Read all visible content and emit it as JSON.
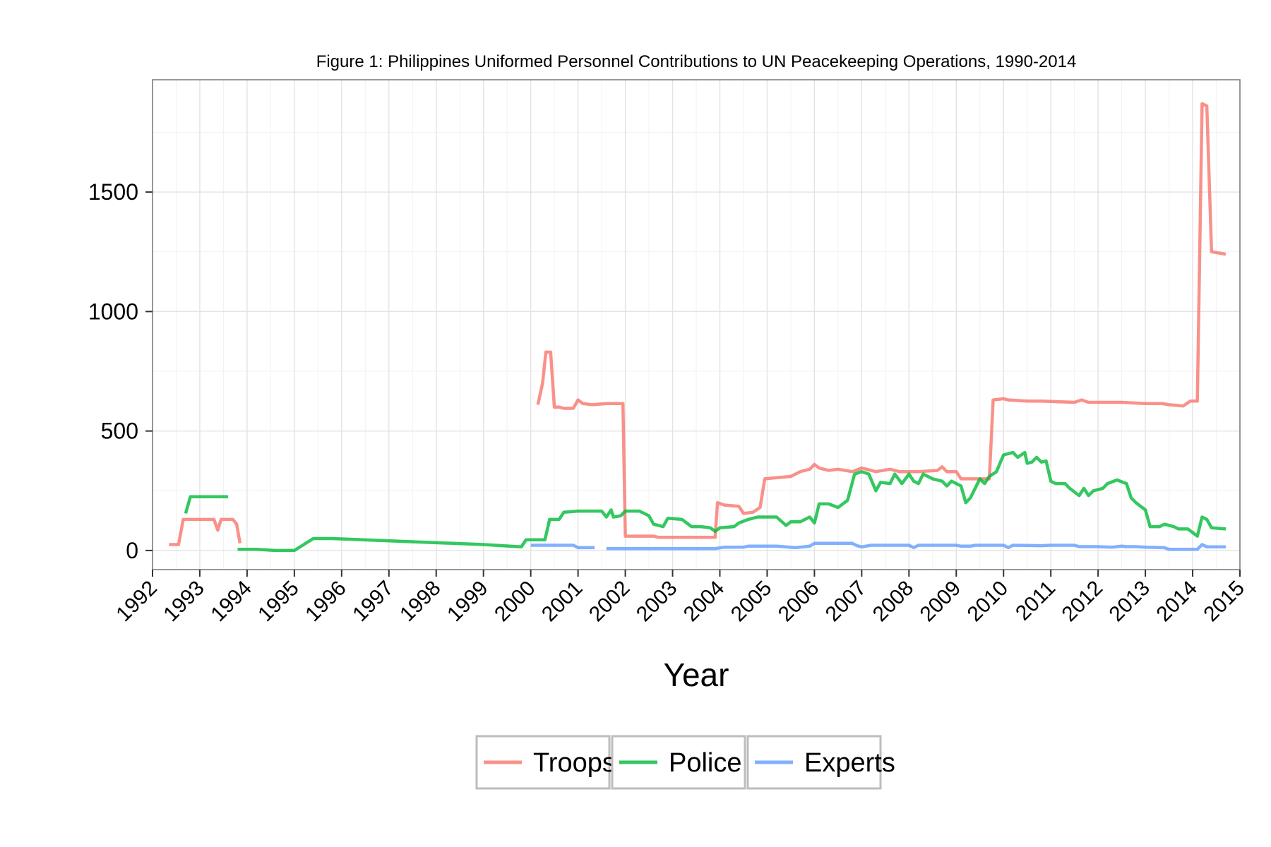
{
  "chart_data": {
    "type": "line",
    "title": "Figure 1: Philippines Uniformed Personnel Contributions to UN Peacekeeping Operations, 1990-2014",
    "xlabel": "Year",
    "ylabel": "",
    "xlim": [
      1992.0,
      2015.0
    ],
    "ylim": [
      -80,
      1970
    ],
    "x_ticks": [
      1992,
      1993,
      1994,
      1995,
      1996,
      1997,
      1998,
      1999,
      2000,
      2001,
      2002,
      2003,
      2004,
      2005,
      2006,
      2007,
      2008,
      2009,
      2010,
      2011,
      2012,
      2013,
      2014,
      2015
    ],
    "y_ticks": [
      0,
      500,
      1000,
      1500
    ],
    "grid": true,
    "legend": {
      "position": "bottom",
      "entries": [
        "Troops",
        "Police",
        "Experts"
      ]
    },
    "series": [
      {
        "name": "Troops",
        "color": "#F8766D",
        "segments": [
          [
            [
              1992.35,
              25
            ],
            [
              1992.55,
              25
            ],
            [
              1992.65,
              130
            ],
            [
              1993.3,
              130
            ],
            [
              1993.38,
              85
            ],
            [
              1993.45,
              130
            ],
            [
              1993.7,
              130
            ],
            [
              1993.78,
              110
            ],
            [
              1993.85,
              30
            ]
          ],
          [
            [
              2000.15,
              610
            ],
            [
              2000.25,
              700
            ],
            [
              2000.32,
              830
            ],
            [
              2000.42,
              830
            ],
            [
              2000.5,
              600
            ],
            [
              2000.6,
              600
            ],
            [
              2000.7,
              595
            ],
            [
              2000.9,
              595
            ],
            [
              2001.0,
              630
            ],
            [
              2001.1,
              615
            ],
            [
              2001.3,
              610
            ],
            [
              2001.6,
              615
            ],
            [
              2001.95,
              615
            ],
            [
              2002.0,
              60
            ],
            [
              2002.4,
              60
            ],
            [
              2002.6,
              60
            ],
            [
              2002.7,
              55
            ],
            [
              2003.0,
              55
            ],
            [
              2003.9,
              55
            ],
            [
              2003.95,
              200
            ],
            [
              2004.1,
              190
            ],
            [
              2004.4,
              185
            ],
            [
              2004.5,
              155
            ],
            [
              2004.7,
              160
            ],
            [
              2004.85,
              180
            ],
            [
              2004.95,
              300
            ],
            [
              2005.2,
              305
            ],
            [
              2005.5,
              310
            ],
            [
              2005.7,
              330
            ],
            [
              2005.9,
              340
            ],
            [
              2006.0,
              360
            ],
            [
              2006.1,
              345
            ],
            [
              2006.3,
              335
            ],
            [
              2006.5,
              340
            ],
            [
              2006.8,
              330
            ],
            [
              2007.0,
              345
            ],
            [
              2007.3,
              330
            ],
            [
              2007.6,
              340
            ],
            [
              2007.8,
              330
            ],
            [
              2008.2,
              330
            ],
            [
              2008.6,
              335
            ],
            [
              2008.7,
              350
            ],
            [
              2008.8,
              330
            ],
            [
              2009.0,
              330
            ],
            [
              2009.1,
              300
            ],
            [
              2009.7,
              300
            ],
            [
              2009.78,
              630
            ],
            [
              2010.0,
              635
            ],
            [
              2010.1,
              630
            ],
            [
              2010.5,
              625
            ],
            [
              2010.8,
              625
            ],
            [
              2011.5,
              620
            ],
            [
              2011.65,
              630
            ],
            [
              2011.8,
              620
            ],
            [
              2012.5,
              620
            ],
            [
              2013.0,
              615
            ],
            [
              2013.35,
              615
            ],
            [
              2013.5,
              610
            ],
            [
              2013.8,
              605
            ],
            [
              2013.95,
              625
            ],
            [
              2014.1,
              625
            ],
            [
              2014.2,
              1870
            ],
            [
              2014.3,
              1860
            ],
            [
              2014.4,
              1250
            ],
            [
              2014.7,
              1240
            ]
          ]
        ]
      },
      {
        "name": "Police",
        "color": "#00BA38",
        "segments": [
          [
            [
              1992.7,
              155
            ],
            [
              1992.8,
              225
            ],
            [
              1993.0,
              225
            ],
            [
              1993.2,
              225
            ],
            [
              1993.5,
              225
            ],
            [
              1993.6,
              225
            ]
          ],
          [
            [
              1993.8,
              5
            ],
            [
              1994.2,
              5
            ],
            [
              1994.6,
              0
            ],
            [
              1995.0,
              0
            ],
            [
              1995.4,
              50
            ],
            [
              1995.8,
              50
            ],
            [
              1999.0,
              25
            ],
            [
              1999.8,
              15
            ],
            [
              1999.9,
              45
            ],
            [
              2000.3,
              45
            ],
            [
              2000.4,
              130
            ],
            [
              2000.6,
              130
            ],
            [
              2000.7,
              160
            ],
            [
              2001.0,
              165
            ],
            [
              2001.5,
              165
            ],
            [
              2001.6,
              140
            ],
            [
              2001.7,
              170
            ],
            [
              2001.75,
              140
            ],
            [
              2001.9,
              145
            ],
            [
              2002.0,
              165
            ],
            [
              2002.3,
              165
            ],
            [
              2002.5,
              145
            ],
            [
              2002.6,
              110
            ],
            [
              2002.8,
              100
            ],
            [
              2002.9,
              135
            ],
            [
              2003.2,
              130
            ],
            [
              2003.4,
              100
            ],
            [
              2003.6,
              100
            ],
            [
              2003.8,
              95
            ],
            [
              2003.9,
              80
            ],
            [
              2004.0,
              95
            ],
            [
              2004.3,
              100
            ],
            [
              2004.4,
              115
            ],
            [
              2004.6,
              130
            ],
            [
              2004.8,
              140
            ],
            [
              2005.2,
              140
            ],
            [
              2005.4,
              105
            ],
            [
              2005.5,
              120
            ],
            [
              2005.7,
              120
            ],
            [
              2005.9,
              140
            ],
            [
              2006.0,
              115
            ],
            [
              2006.1,
              195
            ],
            [
              2006.3,
              195
            ],
            [
              2006.5,
              180
            ],
            [
              2006.7,
              210
            ],
            [
              2006.85,
              320
            ],
            [
              2007.0,
              330
            ],
            [
              2007.15,
              320
            ],
            [
              2007.3,
              250
            ],
            [
              2007.4,
              285
            ],
            [
              2007.6,
              280
            ],
            [
              2007.7,
              320
            ],
            [
              2007.85,
              280
            ],
            [
              2008.0,
              320
            ],
            [
              2008.1,
              290
            ],
            [
              2008.2,
              280
            ],
            [
              2008.3,
              320
            ],
            [
              2008.5,
              300
            ],
            [
              2008.7,
              290
            ],
            [
              2008.8,
              270
            ],
            [
              2008.9,
              290
            ],
            [
              2009.1,
              270
            ],
            [
              2009.2,
              200
            ],
            [
              2009.3,
              220
            ],
            [
              2009.4,
              260
            ],
            [
              2009.5,
              300
            ],
            [
              2009.6,
              280
            ],
            [
              2009.7,
              310
            ],
            [
              2009.85,
              330
            ],
            [
              2010.0,
              400
            ],
            [
              2010.2,
              410
            ],
            [
              2010.3,
              390
            ],
            [
              2010.45,
              410
            ],
            [
              2010.5,
              365
            ],
            [
              2010.6,
              370
            ],
            [
              2010.7,
              390
            ],
            [
              2010.8,
              370
            ],
            [
              2010.9,
              375
            ],
            [
              2011.0,
              290
            ],
            [
              2011.1,
              280
            ],
            [
              2011.3,
              280
            ],
            [
              2011.4,
              260
            ],
            [
              2011.6,
              230
            ],
            [
              2011.7,
              260
            ],
            [
              2011.8,
              230
            ],
            [
              2011.9,
              250
            ],
            [
              2012.1,
              260
            ],
            [
              2012.2,
              280
            ],
            [
              2012.4,
              295
            ],
            [
              2012.6,
              280
            ],
            [
              2012.7,
              220
            ],
            [
              2012.8,
              200
            ],
            [
              2013.0,
              170
            ],
            [
              2013.1,
              100
            ],
            [
              2013.3,
              100
            ],
            [
              2013.4,
              110
            ],
            [
              2013.6,
              100
            ],
            [
              2013.7,
              90
            ],
            [
              2013.9,
              90
            ],
            [
              2014.0,
              75
            ],
            [
              2014.1,
              60
            ],
            [
              2014.2,
              140
            ],
            [
              2014.3,
              130
            ],
            [
              2014.4,
              95
            ],
            [
              2014.7,
              90
            ]
          ]
        ]
      },
      {
        "name": "Experts",
        "color": "#619CFF",
        "segments": [
          [
            [
              2000.0,
              22
            ],
            [
              2000.9,
              22
            ],
            [
              2001.0,
              12
            ],
            [
              2001.35,
              12
            ]
          ],
          [
            [
              2001.6,
              8
            ],
            [
              2002.5,
              8
            ],
            [
              2003.5,
              8
            ],
            [
              2003.9,
              8
            ],
            [
              2004.1,
              14
            ],
            [
              2004.5,
              14
            ],
            [
              2004.6,
              18
            ],
            [
              2005.2,
              18
            ],
            [
              2005.6,
              12
            ],
            [
              2005.9,
              18
            ],
            [
              2006.0,
              30
            ],
            [
              2006.8,
              30
            ],
            [
              2006.9,
              20
            ],
            [
              2007.0,
              15
            ],
            [
              2007.2,
              22
            ],
            [
              2007.8,
              22
            ],
            [
              2008.0,
              22
            ],
            [
              2008.1,
              12
            ],
            [
              2008.2,
              22
            ],
            [
              2008.8,
              22
            ],
            [
              2009.0,
              22
            ],
            [
              2009.1,
              18
            ],
            [
              2009.3,
              18
            ],
            [
              2009.4,
              22
            ],
            [
              2010.0,
              22
            ],
            [
              2010.1,
              12
            ],
            [
              2010.2,
              22
            ],
            [
              2010.8,
              20
            ],
            [
              2011.0,
              22
            ],
            [
              2011.5,
              22
            ],
            [
              2011.6,
              16
            ],
            [
              2012.0,
              16
            ],
            [
              2012.3,
              14
            ],
            [
              2012.5,
              18
            ],
            [
              2012.6,
              16
            ],
            [
              2012.8,
              16
            ],
            [
              2013.0,
              14
            ],
            [
              2013.4,
              12
            ],
            [
              2013.5,
              5
            ],
            [
              2013.9,
              5
            ],
            [
              2014.1,
              5
            ],
            [
              2014.2,
              25
            ],
            [
              2014.3,
              15
            ],
            [
              2014.7,
              15
            ]
          ]
        ]
      }
    ]
  }
}
